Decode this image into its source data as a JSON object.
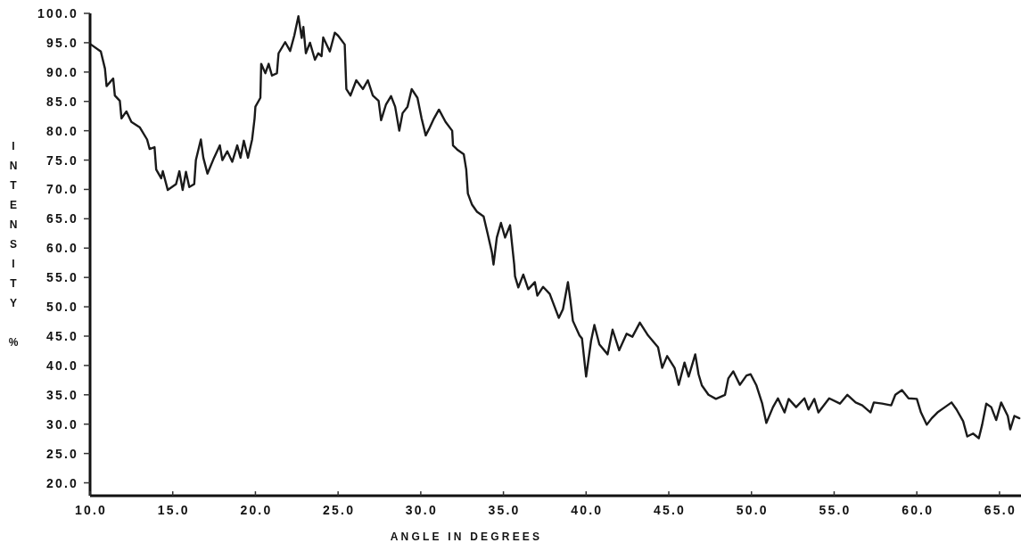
{
  "chart_data": {
    "type": "line",
    "xlabel": "ANGLE IN DEGREES",
    "ylabel": "INTENSITY %",
    "xlim": [
      10,
      66.3
    ],
    "ylim": [
      17.8,
      100
    ],
    "xticks": [
      {
        "value": 10,
        "label": "10.0"
      },
      {
        "value": 15,
        "label": "15.0"
      },
      {
        "value": 20,
        "label": "20.0"
      },
      {
        "value": 25,
        "label": "25.0"
      },
      {
        "value": 30,
        "label": "30.0"
      },
      {
        "value": 35,
        "label": "35.0"
      },
      {
        "value": 40,
        "label": "40.0"
      },
      {
        "value": 45,
        "label": "45.0"
      },
      {
        "value": 50,
        "label": "50.0"
      },
      {
        "value": 55,
        "label": "55.0"
      },
      {
        "value": 60,
        "label": "60.0"
      },
      {
        "value": 65,
        "label": "65.0"
      }
    ],
    "yticks": [
      {
        "value": 20,
        "label": "20.0"
      },
      {
        "value": 25,
        "label": "25.0"
      },
      {
        "value": 30,
        "label": "30.0"
      },
      {
        "value": 35,
        "label": "35.0"
      },
      {
        "value": 40,
        "label": "40.0"
      },
      {
        "value": 45,
        "label": "45.0"
      },
      {
        "value": 50,
        "label": "50.0"
      },
      {
        "value": 55,
        "label": "55.0"
      },
      {
        "value": 60,
        "label": "60.0"
      },
      {
        "value": 65,
        "label": "65.0"
      },
      {
        "value": 70,
        "label": "70.0"
      },
      {
        "value": 75,
        "label": "75.0"
      },
      {
        "value": 80,
        "label": "80.0"
      },
      {
        "value": 85,
        "label": "85.0"
      },
      {
        "value": 90,
        "label": "90.0"
      },
      {
        "value": 95,
        "label": "95.0"
      },
      {
        "value": 100,
        "label": "100.0"
      }
    ],
    "series": [
      {
        "color": "#1a1a1a",
        "x": [
          10.05,
          10.65,
          10.9,
          11.0,
          11.4,
          11.5,
          11.8,
          11.9,
          12.2,
          12.5,
          13.0,
          13.45,
          13.6,
          13.9,
          14.0,
          14.3,
          14.4,
          14.7,
          15.2,
          15.4,
          15.6,
          15.8,
          16.0,
          16.3,
          16.4,
          16.7,
          16.85,
          17.1,
          17.5,
          17.85,
          18.0,
          18.3,
          18.6,
          18.9,
          19.1,
          19.3,
          19.55,
          19.8,
          19.95,
          20.0,
          20.3,
          20.35,
          20.6,
          20.8,
          21.0,
          21.3,
          21.4,
          21.8,
          22.1,
          22.35,
          22.6,
          22.8,
          22.9,
          23.05,
          23.3,
          23.6,
          23.8,
          24.0,
          24.1,
          24.5,
          24.8,
          25.0,
          25.4,
          25.5,
          25.75,
          26.1,
          26.5,
          26.8,
          27.1,
          27.45,
          27.6,
          27.9,
          28.2,
          28.45,
          28.7,
          28.9,
          29.2,
          29.45,
          29.8,
          30.05,
          30.3,
          30.5,
          30.8,
          31.1,
          31.5,
          31.9,
          31.95,
          32.2,
          32.6,
          32.75,
          32.85,
          33.1,
          33.4,
          33.8,
          34.05,
          34.3,
          34.4,
          34.6,
          34.85,
          35.1,
          35.4,
          35.65,
          35.7,
          35.9,
          36.2,
          36.5,
          36.9,
          37.05,
          37.4,
          37.8,
          38.35,
          38.6,
          38.9,
          39.05,
          39.2,
          39.6,
          39.75,
          40.0,
          40.3,
          40.5,
          40.8,
          41.3,
          41.6,
          42.0,
          42.45,
          42.8,
          43.25,
          43.75,
          44.35,
          44.6,
          44.9,
          45.35,
          45.6,
          45.95,
          46.2,
          46.6,
          46.8,
          47.0,
          47.4,
          47.85,
          48.4,
          48.6,
          48.9,
          49.3,
          49.7,
          49.95,
          50.3,
          50.65,
          50.9,
          51.3,
          51.6,
          52.0,
          52.25,
          52.7,
          53.2,
          53.45,
          53.8,
          54.05,
          54.7,
          55.35,
          55.8,
          56.3,
          56.7,
          57.2,
          57.4,
          57.9,
          58.45,
          58.7,
          59.1,
          59.5,
          60.0,
          60.25,
          60.6,
          60.9,
          61.25,
          61.7,
          62.1,
          62.4,
          62.8,
          63.05,
          63.4,
          63.75,
          63.95,
          64.2,
          64.5,
          64.8,
          65.1,
          65.5,
          65.65,
          65.9,
          66.2
        ],
        "values": [
          94.7,
          93.5,
          90.6,
          87.6,
          88.9,
          86.0,
          85.1,
          82.1,
          83.3,
          81.5,
          80.6,
          78.5,
          76.9,
          77.2,
          73.4,
          71.9,
          73.1,
          69.9,
          70.9,
          73.1,
          69.9,
          73.0,
          70.4,
          70.9,
          75.0,
          78.5,
          75.4,
          72.7,
          75.4,
          77.5,
          75.0,
          76.5,
          74.7,
          77.5,
          75.4,
          78.3,
          75.4,
          78.5,
          82.1,
          84.1,
          85.6,
          91.4,
          89.8,
          91.4,
          89.4,
          89.8,
          93.2,
          95.1,
          93.6,
          96.2,
          99.5,
          95.8,
          97.7,
          93.2,
          95.0,
          92.1,
          93.2,
          92.7,
          95.9,
          93.5,
          96.7,
          96.2,
          94.7,
          87.1,
          86.0,
          88.6,
          87.1,
          88.6,
          86.0,
          85.1,
          81.8,
          84.5,
          85.9,
          84.1,
          80.0,
          83.0,
          84.1,
          87.1,
          85.6,
          82.1,
          79.2,
          80.3,
          82.1,
          83.6,
          81.5,
          80.0,
          77.5,
          76.8,
          76.0,
          73.4,
          69.3,
          67.4,
          66.2,
          65.4,
          62.4,
          59.3,
          57.2,
          61.8,
          64.3,
          61.8,
          63.9,
          57.2,
          55.2,
          53.3,
          55.5,
          53.0,
          54.2,
          51.9,
          53.4,
          52.2,
          48.1,
          49.6,
          54.2,
          51.1,
          47.6,
          45.1,
          44.6,
          38.1,
          44.2,
          46.9,
          43.6,
          41.9,
          46.1,
          42.6,
          45.4,
          44.9,
          47.3,
          45.1,
          43.1,
          39.6,
          41.6,
          39.6,
          36.7,
          40.5,
          38.1,
          41.9,
          38.5,
          36.6,
          35.0,
          34.3,
          35.0,
          37.8,
          39.0,
          36.7,
          38.3,
          38.5,
          36.6,
          33.5,
          30.2,
          32.9,
          34.4,
          32.0,
          34.3,
          32.9,
          34.4,
          32.5,
          34.3,
          32.0,
          34.4,
          33.5,
          35.0,
          33.7,
          33.2,
          32.0,
          33.7,
          33.5,
          33.2,
          35.0,
          35.8,
          34.4,
          34.3,
          32.0,
          29.9,
          31.0,
          32.0,
          32.9,
          33.7,
          32.5,
          30.5,
          27.9,
          28.4,
          27.6,
          29.9,
          33.5,
          32.9,
          30.7,
          33.7,
          31.4,
          29.1,
          31.4,
          31.0
        ]
      }
    ]
  }
}
